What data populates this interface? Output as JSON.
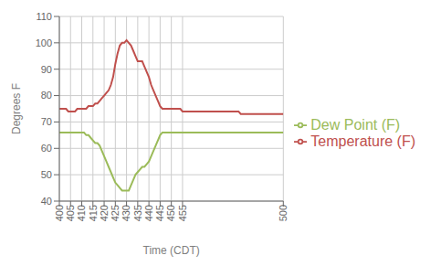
{
  "chart_data": {
    "type": "line",
    "xlabel": "Time (CDT)",
    "ylabel": "Degrees F",
    "xlim": [
      400,
      500
    ],
    "ylim": [
      40,
      110
    ],
    "xticks": [
      400,
      405,
      410,
      415,
      420,
      425,
      430,
      435,
      440,
      445,
      450,
      455,
      500
    ],
    "yticks": [
      40,
      50,
      60,
      70,
      80,
      90,
      100,
      110
    ],
    "grid": true,
    "legend": "right",
    "x": [
      400,
      401,
      402,
      403,
      404,
      405,
      406,
      407,
      408,
      409,
      410,
      411,
      412,
      413,
      414,
      415,
      416,
      417,
      418,
      419,
      420,
      421,
      422,
      423,
      424,
      425,
      426,
      427,
      428,
      429,
      430,
      431,
      432,
      433,
      434,
      435,
      436,
      437,
      438,
      439,
      440,
      441,
      442,
      443,
      444,
      445,
      446,
      447,
      448,
      449,
      450,
      451,
      452,
      453,
      454,
      455,
      456,
      457,
      458,
      459,
      460,
      461,
      462,
      463,
      464,
      465,
      466,
      467,
      468,
      469,
      470,
      471,
      472,
      473,
      474,
      475,
      476,
      477,
      478,
      479,
      480,
      481,
      482,
      483,
      484,
      485,
      486,
      487,
      488,
      489,
      490,
      491,
      492,
      493,
      494,
      495,
      496,
      497,
      498,
      499,
      500
    ],
    "series": [
      {
        "name": "Temperature (F)",
        "color": "#C0504D",
        "values": [
          75,
          75,
          75,
          75,
          74,
          74,
          74,
          74,
          75,
          75,
          75,
          75,
          75,
          76,
          76,
          76,
          77,
          77,
          78,
          79,
          80,
          81,
          82,
          84,
          87,
          92,
          96,
          99,
          100,
          100,
          101,
          100,
          99,
          97,
          95,
          93,
          93,
          93,
          91,
          89,
          87,
          84,
          82,
          80,
          78,
          76,
          75,
          75,
          75,
          75,
          75,
          75,
          75,
          75,
          75,
          74,
          74,
          74,
          74,
          74,
          74,
          74,
          74,
          74,
          74,
          74,
          74,
          74,
          74,
          74,
          74,
          74,
          74,
          74,
          74,
          74,
          74,
          74,
          74,
          74,
          74,
          73,
          73,
          73,
          73,
          73,
          73,
          73,
          73,
          73,
          73,
          73,
          73,
          73,
          73,
          73,
          73,
          73,
          73,
          73,
          73
        ]
      },
      {
        "name": "Dew Point (F)",
        "color": "#9BBB59",
        "values": [
          66,
          66,
          66,
          66,
          66,
          66,
          66,
          66,
          66,
          66,
          66,
          66,
          65,
          65,
          64,
          63,
          62,
          62,
          61,
          59,
          57,
          55,
          53,
          51,
          49,
          47,
          46,
          45,
          44,
          44,
          44,
          44,
          46,
          48,
          50,
          51,
          52,
          53,
          53,
          54,
          55,
          57,
          59,
          61,
          63,
          65,
          66,
          66,
          66,
          66,
          66,
          66,
          66,
          66,
          66,
          66,
          66,
          66,
          66,
          66,
          66,
          66,
          66,
          66,
          66,
          66,
          66,
          66,
          66,
          66,
          66,
          66,
          66,
          66,
          66,
          66,
          66,
          66,
          66,
          66,
          66,
          66,
          66,
          66,
          66,
          66,
          66,
          66,
          66,
          66,
          66,
          66,
          66,
          66,
          66,
          66,
          66,
          66,
          66,
          66,
          66
        ]
      }
    ]
  }
}
